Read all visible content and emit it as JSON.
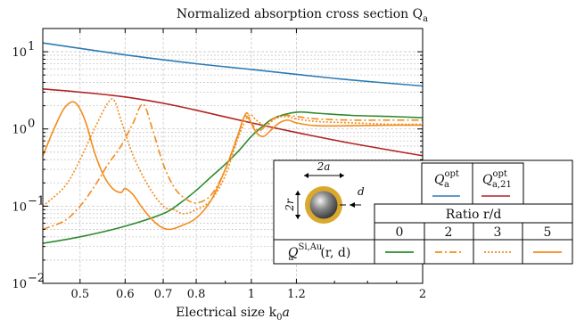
{
  "chart_data": {
    "type": "line",
    "title": "Normalized absorption cross section Q",
    "title_sub": "a",
    "xlabel": "Electrical size k",
    "xlabel_sub": "0",
    "xlabel_tail": "a",
    "xscale": "log",
    "yscale": "log",
    "xlim": [
      0.43,
      2.0
    ],
    "ylim": [
      0.01,
      20
    ],
    "grid": true,
    "x_ticks": [
      0.5,
      0.6,
      0.7,
      0.8,
      1,
      1.2,
      2
    ],
    "x_tick_labels": [
      "0.5",
      "0.6",
      "0.7",
      "0.8",
      "1",
      "1.2",
      "2"
    ],
    "y_ticks": [
      0.01,
      0.1,
      1,
      10
    ],
    "y_tick_labels": [
      "10",
      "10",
      "10",
      "10"
    ],
    "y_tick_exponents": [
      "−2",
      "−1",
      "0",
      "1"
    ],
    "colors": {
      "blue": "#2a7ab5",
      "red": "#b22222",
      "green": "#2e8b2e",
      "orange": "#f28c1c"
    },
    "series": [
      {
        "id": "qopt",
        "color": "#2a7ab5",
        "dash": "none",
        "x": [
          0.43,
          0.6,
          0.8,
          1.0,
          1.2,
          1.5,
          2.0
        ],
        "y": [
          13.0,
          9.1,
          7.0,
          5.9,
          5.1,
          4.3,
          3.6
        ]
      },
      {
        "id": "qopt21",
        "color": "#b22222",
        "dash": "none",
        "x": [
          0.43,
          0.5,
          0.6,
          0.7,
          0.8,
          1.0,
          1.2,
          1.5,
          2.0
        ],
        "y": [
          3.3,
          3.0,
          2.6,
          2.15,
          1.75,
          1.2,
          0.9,
          0.65,
          0.45
        ]
      },
      {
        "id": "r0",
        "color": "#2e8b2e",
        "dash": "none",
        "x": [
          0.43,
          0.5,
          0.6,
          0.7,
          0.75,
          0.8,
          0.85,
          0.9,
          0.95,
          1.0,
          1.05,
          1.1,
          1.2,
          1.3,
          1.5,
          1.75,
          2.0
        ],
        "y": [
          0.033,
          0.04,
          0.055,
          0.08,
          0.11,
          0.16,
          0.24,
          0.35,
          0.52,
          0.8,
          1.1,
          1.4,
          1.65,
          1.6,
          1.5,
          1.45,
          1.4
        ]
      },
      {
        "id": "r2",
        "color": "#f28c1c",
        "dash": "8 3 2 3",
        "x": [
          0.43,
          0.47,
          0.5,
          0.53,
          0.56,
          0.59,
          0.62,
          0.645,
          0.67,
          0.7,
          0.73,
          0.76,
          0.8,
          0.85,
          0.9,
          0.95,
          0.98,
          1.0,
          1.03,
          1.06,
          1.1,
          1.15,
          1.2,
          1.3,
          1.5,
          1.75,
          2.0
        ],
        "y": [
          0.05,
          0.065,
          0.1,
          0.18,
          0.35,
          0.6,
          1.2,
          2.1,
          1.0,
          0.35,
          0.18,
          0.13,
          0.11,
          0.14,
          0.3,
          0.9,
          1.6,
          1.2,
          0.95,
          1.1,
          1.4,
          1.5,
          1.45,
          1.35,
          1.3,
          1.3,
          1.3
        ]
      },
      {
        "id": "r3",
        "color": "#f28c1c",
        "dash": "2 2",
        "x": [
          0.43,
          0.47,
          0.5,
          0.53,
          0.56,
          0.575,
          0.59,
          0.62,
          0.66,
          0.7,
          0.73,
          0.76,
          0.8,
          0.85,
          0.9,
          0.95,
          0.99,
          1.02,
          1.06,
          1.1,
          1.15,
          1.2,
          1.3,
          1.5,
          1.75,
          2.0
        ],
        "y": [
          0.1,
          0.18,
          0.4,
          1.0,
          2.2,
          2.3,
          1.3,
          0.45,
          0.18,
          0.1,
          0.09,
          0.08,
          0.09,
          0.12,
          0.25,
          0.8,
          1.5,
          1.3,
          1.1,
          1.35,
          1.45,
          1.35,
          1.25,
          1.2,
          1.15,
          1.15
        ]
      },
      {
        "id": "r5",
        "color": "#f28c1c",
        "dash": "none",
        "x": [
          0.43,
          0.45,
          0.47,
          0.49,
          0.51,
          0.53,
          0.55,
          0.57,
          0.59,
          0.6,
          0.62,
          0.64,
          0.66,
          0.68,
          0.7,
          0.72,
          0.75,
          0.8,
          0.85,
          0.9,
          0.94,
          0.97,
          0.99,
          1.02,
          1.05,
          1.08,
          1.12,
          1.16,
          1.2,
          1.3,
          1.5,
          1.75,
          2.0
        ],
        "y": [
          0.45,
          1.0,
          1.9,
          2.2,
          1.3,
          0.5,
          0.25,
          0.17,
          0.15,
          0.17,
          0.14,
          0.1,
          0.075,
          0.06,
          0.052,
          0.05,
          0.055,
          0.07,
          0.12,
          0.3,
          0.7,
          1.4,
          1.35,
          0.9,
          0.8,
          0.95,
          1.2,
          1.3,
          1.2,
          1.1,
          1.1,
          1.12,
          1.12
        ]
      }
    ],
    "legend": {
      "diagram_label_2a": "2a",
      "diagram_label_2r": "2r",
      "diagram_label_d": "d",
      "qopt_label": "Q",
      "qopt_sub": "a",
      "qopt_sup": "opt",
      "qopt21_label": "Q",
      "qopt21_sub": "a,21",
      "qopt21_sup": "opt",
      "ratio_header": "Ratio r/d",
      "ratio_values": [
        "0",
        "2",
        "3",
        "5"
      ],
      "row_label": "Q",
      "row_sub": "a",
      "row_sup": "Si,Au",
      "row_tail": "(r, d)"
    }
  }
}
